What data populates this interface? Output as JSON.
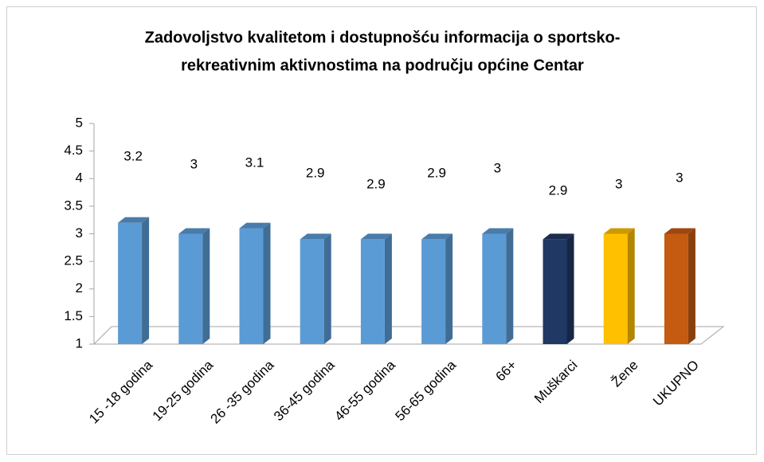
{
  "chart_data": {
    "type": "bar3d",
    "title": [
      "Zadovoljstvo kvalitetom i dostupnošću informacija o sportsko-",
      "rekreativnim aktivnostima na području općine Centar"
    ],
    "categories": [
      "15 -18 godina",
      "19-25 godina",
      "26 -35 godina",
      "36-45 godina",
      "46-55 godina",
      "56-65 godina",
      "66+",
      "Muškarci",
      "Žene",
      "UKUPNO"
    ],
    "values": [
      3.2,
      3,
      3.1,
      2.9,
      2.9,
      2.9,
      3,
      2.9,
      3,
      3
    ],
    "colors": [
      "#5b9bd5",
      "#5b9bd5",
      "#5b9bd5",
      "#5b9bd5",
      "#5b9bd5",
      "#5b9bd5",
      "#5b9bd5",
      "#203864",
      "#ffc000",
      "#c55a11"
    ],
    "ylim": [
      1,
      5
    ],
    "yticks": [
      1,
      1.5,
      2,
      2.5,
      3,
      3.5,
      4,
      4.5,
      5
    ],
    "grid": false
  }
}
